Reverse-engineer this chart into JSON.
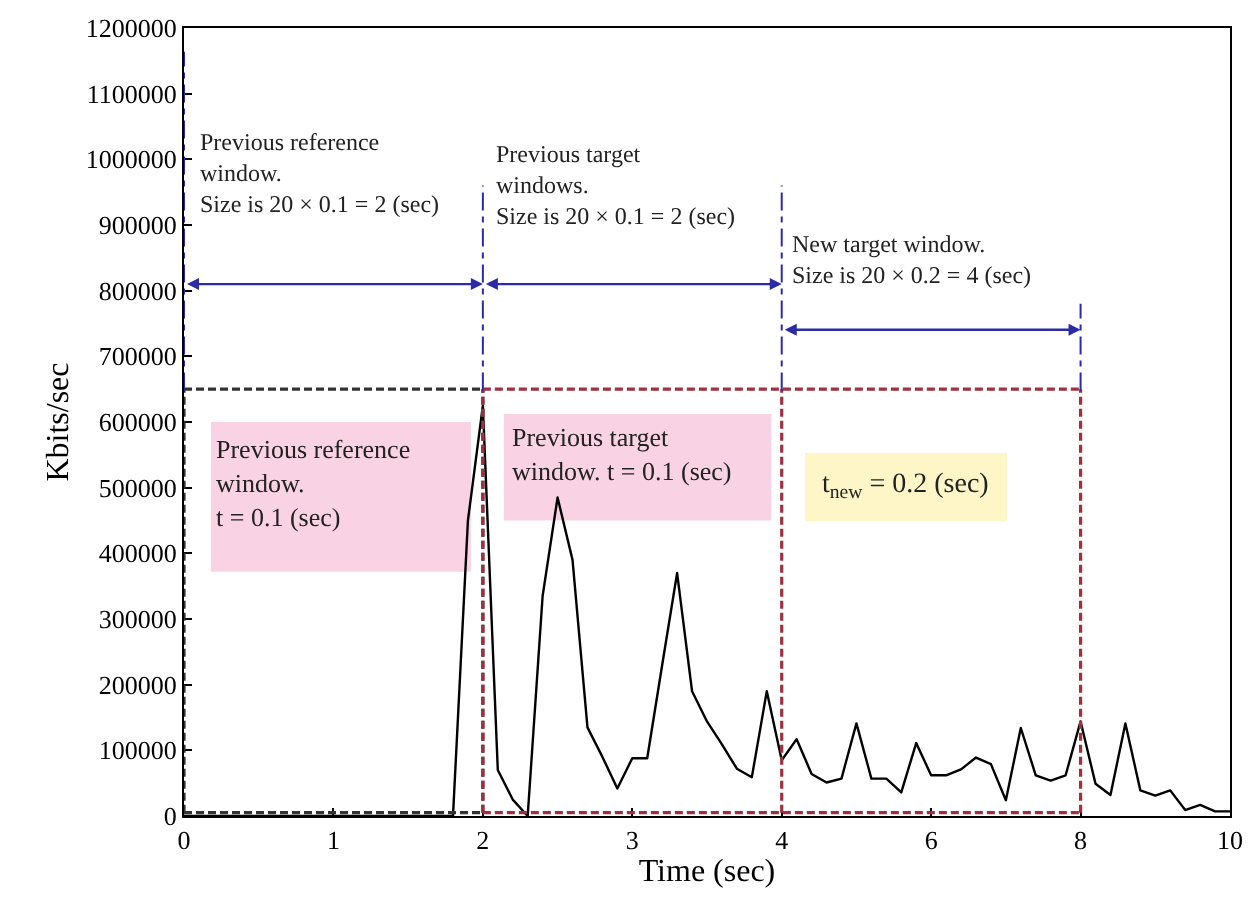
{
  "chart_data": {
    "type": "line",
    "xlabel": "Time (sec)",
    "ylabel": "Kbits/sec",
    "categories": [
      "0",
      null,
      null,
      null,
      null,
      null,
      null,
      null,
      null,
      null,
      "1",
      null,
      null,
      null,
      null,
      null,
      null,
      null,
      null,
      null,
      "2",
      null,
      null,
      null,
      null,
      null,
      null,
      null,
      null,
      null,
      "3",
      null,
      null,
      null,
      null,
      null,
      null,
      null,
      null,
      null,
      "4",
      null,
      null,
      null,
      null,
      null,
      null,
      null,
      null,
      null,
      "6",
      null,
      null,
      null,
      null,
      null,
      null,
      null,
      null,
      null,
      "8",
      null,
      null,
      null,
      null,
      null,
      null,
      null,
      null,
      null,
      "10"
    ],
    "series": [
      {
        "color": "#000000",
        "values": [
          0,
          0,
          0,
          0,
          0,
          0,
          0,
          0,
          0,
          0,
          0,
          0,
          0,
          0,
          0,
          0,
          0,
          0,
          0,
          450000,
          625000,
          70000,
          25000,
          0,
          335000,
          485000,
          390000,
          135000,
          90000,
          42000,
          88000,
          88000,
          230000,
          370000,
          190000,
          144000,
          109000,
          72000,
          59000,
          190000,
          85000,
          117000,
          64000,
          51000,
          57000,
          141000,
          57000,
          57000,
          36000,
          111000,
          62000,
          62000,
          71000,
          89000,
          79000,
          24000,
          134000,
          62000,
          54000,
          62000,
          144000,
          49000,
          32000,
          141000,
          39000,
          31000,
          39000,
          9000,
          17000,
          7000,
          7000
        ]
      }
    ],
    "ylim": [
      0,
      1200000
    ],
    "yticks": [
      0,
      100000,
      200000,
      300000,
      400000,
      500000,
      600000,
      700000,
      800000,
      900000,
      1000000,
      1100000,
      1200000
    ],
    "ref_lines": [
      {
        "axis": "x",
        "value": "0",
        "color": "#2b2ba8",
        "line_style": "dotted"
      },
      {
        "axis": "x",
        "value": "2",
        "color": "#2b2ba8",
        "line_style": "dotted"
      },
      {
        "axis": "x",
        "value": "4",
        "color": "#2b2ba8",
        "line_style": "dotted"
      },
      {
        "axis": "x",
        "value": "8",
        "color": "#2b2ba8",
        "line_style": "dotted"
      },
      {
        "axis": "x",
        "value": "0",
        "color": "#333333",
        "line_style": "dashed"
      },
      {
        "axis": "x",
        "value": "2",
        "color": "#333333",
        "line_style": "dashed"
      },
      {
        "axis": "x",
        "value": "2",
        "color": "#a03040",
        "line_style": "dashed"
      },
      {
        "axis": "x",
        "value": "4",
        "color": "#a03040",
        "line_style": "dashed"
      },
      {
        "axis": "x",
        "value": "8",
        "color": "#a03040",
        "line_style": "dashed"
      },
      {
        "axis": "y",
        "value": 650000,
        "color": "#333333",
        "line_style": "dashed"
      },
      {
        "axis": "y",
        "value": 5000,
        "color": "#333333",
        "line_style": "dashed"
      },
      {
        "axis": "y",
        "value": 650000,
        "color": "#a03040",
        "line_style": "dashed"
      },
      {
        "axis": "y",
        "value": 5000,
        "color": "#a03040",
        "line_style": "dashed"
      }
    ],
    "annotations": [
      "Previous reference\nwindow.\nSize is 20 × 0.1 = 2 (sec)",
      "Previous target\nwindows.\nSize is 20 × 0.1 = 2 (sec)",
      "New target window.\nSize is 20 × 0.2 = 4 (sec)",
      "Previous reference\nwindow.\nt = 0.1 (sec)",
      "Previous target\nwindow. t = 0.1 (sec)",
      "t$_{new}$ = 0.2 (sec)"
    ],
    "grid": false
  }
}
